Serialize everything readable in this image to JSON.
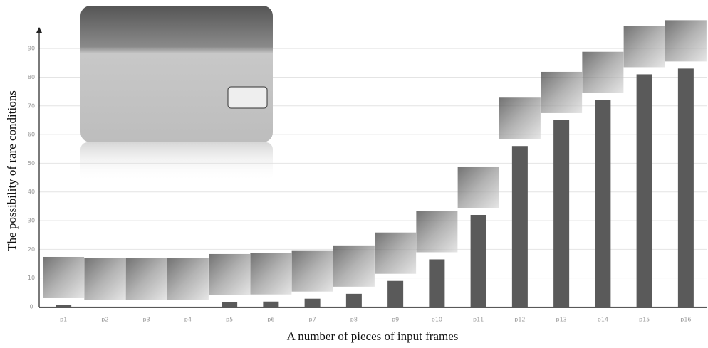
{
  "chart_data": {
    "type": "bar",
    "xlabel": "A number of pieces of input frames",
    "ylabel": "The possibility of rare conditions",
    "categories": [
      "p1",
      "p2",
      "p3",
      "p4",
      "p5",
      "p6",
      "p7",
      "p8",
      "p9",
      "p10",
      "p11",
      "p12",
      "p13",
      "p14",
      "p15",
      "p16"
    ],
    "values": [
      0.5,
      0,
      0,
      0,
      1.5,
      1.8,
      2.8,
      4.5,
      9,
      16.5,
      32,
      56,
      65,
      72,
      81,
      83
    ],
    "color": "#5a5a5a",
    "ylim": [
      0,
      95
    ],
    "yticks": [
      0,
      10,
      20,
      30,
      40,
      50,
      60,
      70,
      80,
      90
    ],
    "grid": true
  }
}
